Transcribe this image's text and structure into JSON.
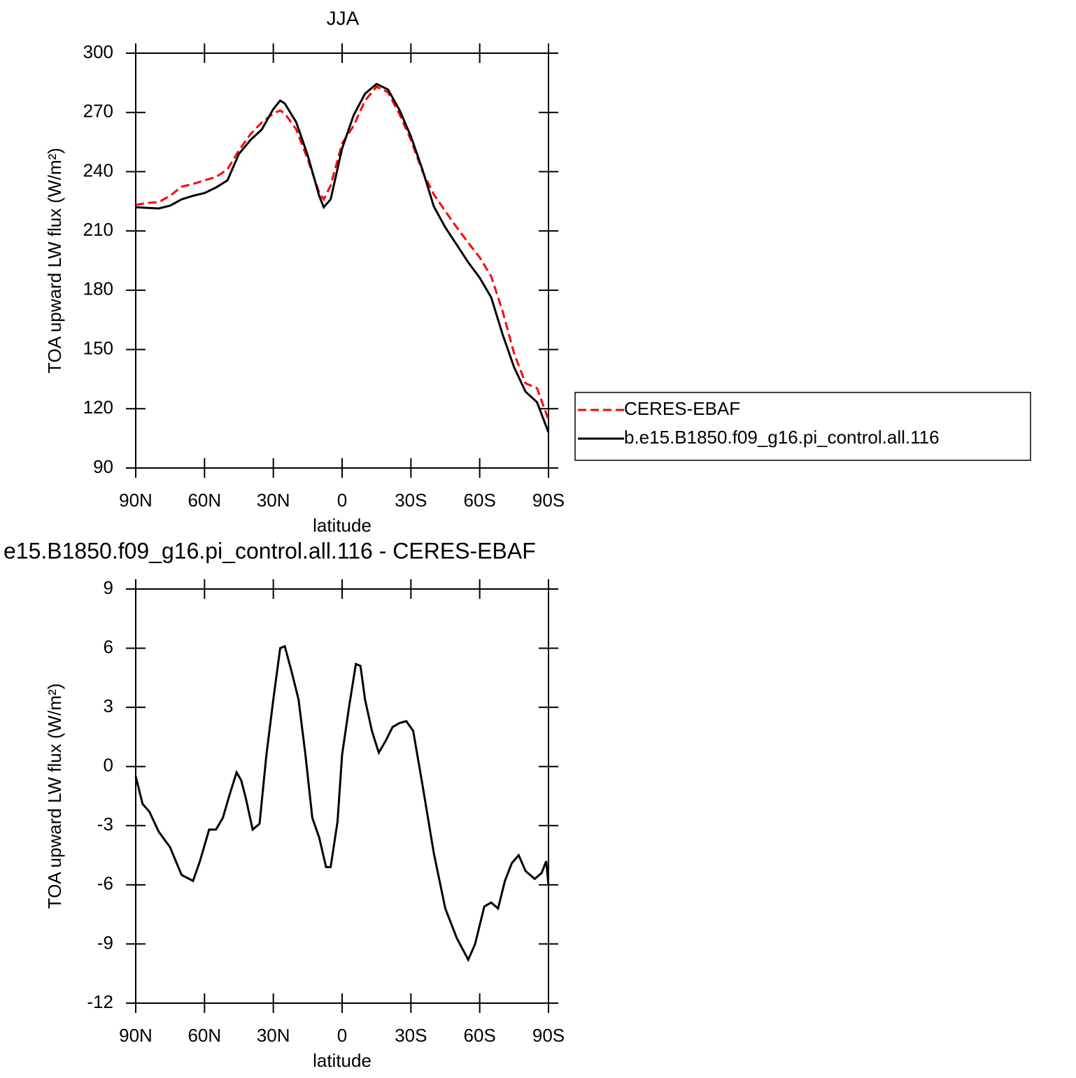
{
  "chart_data": [
    {
      "type": "line",
      "title": "JJA",
      "xlabel": "latitude",
      "ylabel": "TOA upward LW flux (W/m²)",
      "x": [
        90,
        85,
        80,
        75,
        70,
        65,
        60,
        55,
        50,
        45,
        40,
        35,
        30,
        27,
        25,
        20,
        15,
        10,
        8,
        5,
        0,
        -5,
        -10,
        -15,
        -20,
        -25,
        -30,
        -35,
        -40,
        -45,
        -50,
        -55,
        -60,
        -65,
        -70,
        -75,
        -80,
        -85,
        -90
      ],
      "series": [
        {
          "name": "CERES-EBAF",
          "color": "#ff0000",
          "dash": true,
          "values": [
            223.2,
            224.2,
            224.6,
            227.8,
            232.4,
            233.8,
            235.6,
            237.3,
            241.2,
            250.8,
            258.9,
            265,
            269.5,
            271,
            269.5,
            261.4,
            246.2,
            229.5,
            226,
            233,
            254.3,
            263.2,
            276,
            283,
            280.2,
            269.2,
            256.1,
            240.2,
            228.5,
            220,
            211.8,
            204,
            196.6,
            187,
            169.3,
            148,
            132.9,
            130.4,
            114.4
          ]
        },
        {
          "name": "b.e15.B1850.f09_g16.pi_control.all.116",
          "color": "#000000",
          "dash": false,
          "values": [
            222,
            221.7,
            221.4,
            222.8,
            226,
            227.8,
            229.2,
            232,
            235.6,
            249,
            256,
            261.4,
            271.7,
            276,
            274.5,
            265,
            248.3,
            227.8,
            222,
            226,
            251.8,
            268.5,
            279.5,
            284.4,
            281.6,
            271.3,
            257.9,
            241.2,
            222.4,
            211.8,
            203,
            194.1,
            186.3,
            176.4,
            157.6,
            141,
            128.6,
            123.3,
            108
          ]
        }
      ],
      "xlim": [
        90,
        -90
      ],
      "ylim": [
        90,
        300
      ],
      "xticks": [
        {
          "value": 90,
          "label": "90N"
        },
        {
          "value": 60,
          "label": "60N"
        },
        {
          "value": 30,
          "label": "30N"
        },
        0,
        {
          "value": -30,
          "label": "30S"
        },
        {
          "value": -60,
          "label": "60S"
        },
        {
          "value": -90,
          "label": "90S"
        }
      ],
      "yticks": [
        90,
        120,
        150,
        180,
        210,
        240,
        270,
        300
      ],
      "legend": "outside-right"
    },
    {
      "type": "line",
      "title": "e15.B1850.f09_g16.pi_control.all.116 - CERES-EBAF",
      "xlabel": "latitude",
      "ylabel": "TOA upward LW flux (W/m²)",
      "x": [
        90,
        87,
        84,
        80,
        75,
        70,
        65,
        62,
        58,
        55,
        52,
        49,
        46,
        44,
        42,
        39,
        36,
        33,
        30,
        27,
        25,
        22,
        19,
        16,
        13,
        10,
        7,
        5,
        2,
        0,
        -3,
        -6,
        -8,
        -10,
        -13,
        -16,
        -19,
        -22,
        -25,
        -28,
        -31,
        -35,
        -40,
        -45,
        -50,
        -55,
        -58,
        -62,
        -65,
        -68,
        -71,
        -74,
        -77,
        -80,
        -84,
        -87,
        -89,
        -90
      ],
      "series": [
        {
          "color": "#000000",
          "dash": false,
          "values": [
            -0.5,
            -1.9,
            -2.3,
            -3.3,
            -4.1,
            -5.5,
            -5.8,
            -4.8,
            -3.2,
            -3.2,
            -2.6,
            -1.4,
            -0.3,
            -0.7,
            -1.6,
            -3.2,
            -2.9,
            0.6,
            3.4,
            6.0,
            6.1,
            4.8,
            3.4,
            0.6,
            -2.6,
            -3.6,
            -5.1,
            -5.1,
            -2.8,
            0.6,
            3.0,
            5.2,
            5.1,
            3.4,
            1.8,
            0.7,
            1.3,
            2.0,
            2.2,
            2.3,
            1.8,
            -0.9,
            -4.4,
            -7.2,
            -8.7,
            -9.8,
            -9.0,
            -7.1,
            -6.9,
            -7.2,
            -5.8,
            -4.9,
            -4.5,
            -5.3,
            -5.7,
            -5.4,
            -4.8,
            -6.0
          ]
        }
      ],
      "xlim": [
        90,
        -90
      ],
      "ylim": [
        -12,
        9
      ],
      "xticks": [
        {
          "value": 90,
          "label": "90N"
        },
        {
          "value": 60,
          "label": "60N"
        },
        {
          "value": 30,
          "label": "30N"
        },
        0,
        {
          "value": -30,
          "label": "30S"
        },
        {
          "value": -60,
          "label": "60S"
        },
        {
          "value": -90,
          "label": "90S"
        }
      ],
      "yticks": [
        -12,
        -9,
        -6,
        -3,
        0,
        3,
        6,
        9
      ]
    }
  ]
}
